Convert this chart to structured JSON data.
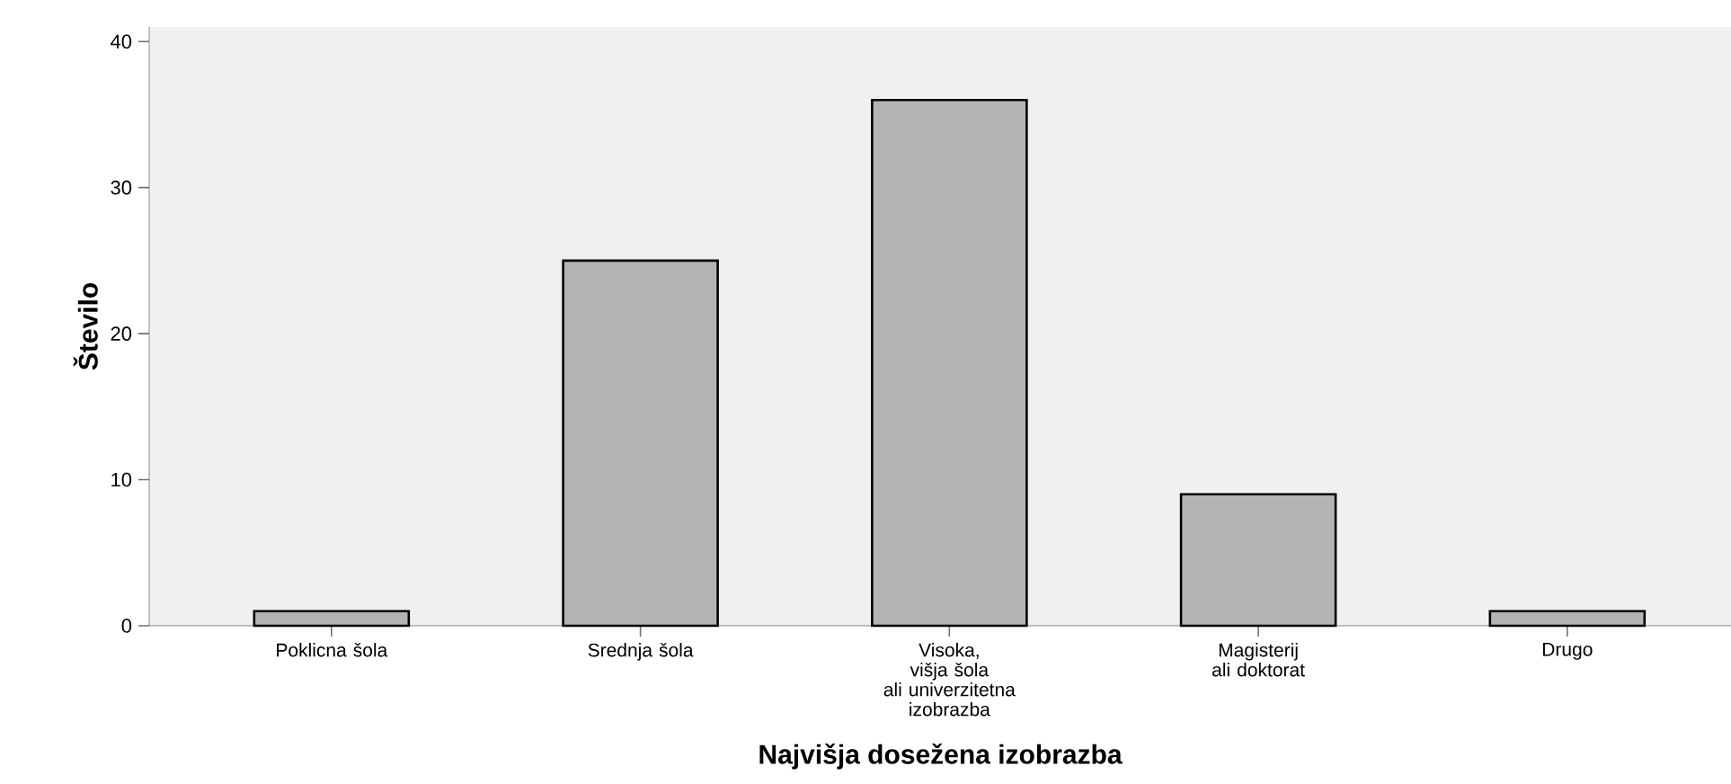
{
  "chart_data": {
    "type": "bar",
    "xlabel": "Najvišja dosežena izobrazba",
    "ylabel": "Število",
    "categories": [
      "Poklicna šola",
      "Srednja šola",
      "Visoka, višja šola ali univerzitetna izobrazba",
      "Magisterij ali doktorat",
      "Drugo"
    ],
    "values": [
      1,
      25,
      36,
      9,
      1
    ],
    "color": "#b4b4b4",
    "ylim": [
      0,
      41
    ],
    "yticks": [
      0,
      10,
      20,
      30,
      40
    ],
    "grid": false
  }
}
